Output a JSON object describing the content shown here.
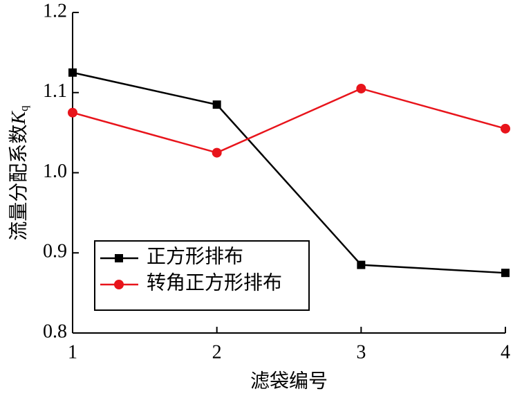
{
  "chart_data": {
    "type": "line",
    "xlabel": "滤袋编号",
    "ylabel": "流量分配系数",
    "ylabel_symbol": "K",
    "ylabel_subscript": "q",
    "x": [
      1,
      2,
      3,
      4
    ],
    "series": [
      {
        "name": "正方形排布",
        "color": "#000000",
        "marker": "square",
        "values": [
          1.125,
          1.085,
          0.885,
          0.875
        ]
      },
      {
        "name": "转角正方形排布",
        "color": "#e8141b",
        "marker": "circle",
        "values": [
          1.075,
          1.025,
          1.105,
          1.055
        ]
      }
    ],
    "xlim": [
      1,
      4
    ],
    "xticks": [
      1,
      2,
      3,
      4
    ],
    "ylim": [
      0.8,
      1.2
    ],
    "yticks": [
      0.8,
      0.9,
      {
        "value": 1,
        "label": "1.0"
      },
      1.1,
      1.2
    ],
    "legend": "lower-left"
  }
}
